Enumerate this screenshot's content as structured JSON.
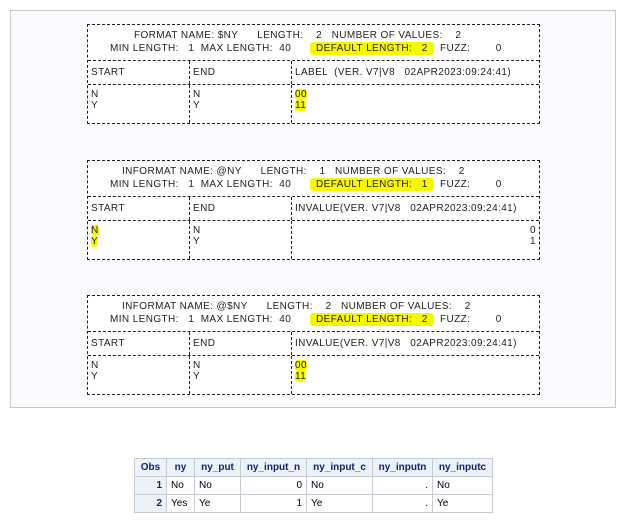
{
  "highlight_color": "#f7f700",
  "tables": [
    {
      "line1": "FORMAT NAME: $NY      LENGTH:    2   NUMBER OF VALUES:    2",
      "line2a": "MIN LENGTH:   1  MAX LENGTH:  40",
      "line2b": "DEFAULT LENGTH:   2",
      "line2c": "FUZZ:        0",
      "cols": [
        "START",
        "END",
        "LABEL  (VER. V7|V8   02APR2023:09:24:41)"
      ],
      "rows": [
        {
          "start": "N",
          "end": "N",
          "val": "00"
        },
        {
          "start": "Y",
          "end": "Y",
          "val": "11"
        }
      ]
    },
    {
      "line1": "INFORMAT NAME: @NY      LENGTH:    1   NUMBER OF VALUES:    2",
      "line2a": "MIN LENGTH:   1  MAX LENGTH:  40",
      "line2b": "DEFAULT LENGTH:   1",
      "line2c": "FUZZ:        0",
      "cols": [
        "START",
        "END",
        "INVALUE(VER. V7|V8   02APR2023:09:24:41)"
      ],
      "rows": [
        {
          "start": "N",
          "end": "N",
          "val": "0"
        },
        {
          "start": "Y",
          "end": "Y",
          "val": "1"
        }
      ]
    },
    {
      "line1": "INFORMAT NAME: @$NY      LENGTH:    2   NUMBER OF VALUES:    2",
      "line2a": "MIN LENGTH:   1  MAX LENGTH:  40",
      "line2b": "DEFAULT LENGTH:   2",
      "line2c": "FUZZ:        0",
      "cols": [
        "START",
        "END",
        "INVALUE(VER. V7|V8   02APR2023:09:24:41)"
      ],
      "rows": [
        {
          "start": "N",
          "end": "N",
          "val": "00"
        },
        {
          "start": "Y",
          "end": "Y",
          "val": "11"
        }
      ]
    }
  ],
  "obs_table": {
    "headers": [
      "Obs",
      "ny",
      "ny_put",
      "ny_input_n",
      "ny_input_c",
      "ny_inputn",
      "ny_inputc"
    ],
    "rows": [
      [
        "1",
        "No",
        "No",
        "0",
        "No",
        ".",
        "No"
      ],
      [
        "2",
        "Yes",
        "Ye",
        "1",
        "Ye",
        ".",
        "Ye"
      ]
    ]
  }
}
